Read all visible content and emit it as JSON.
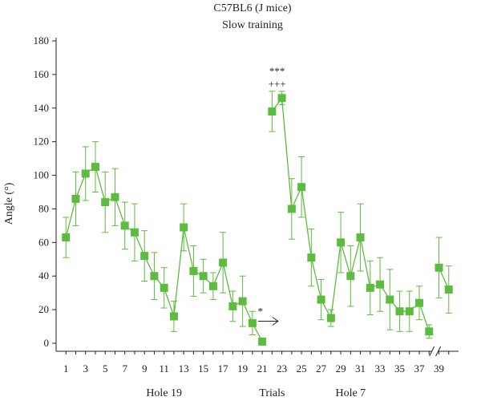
{
  "chart_data": {
    "type": "line",
    "title": "C57BL6 (J mice)",
    "subtitle": "Slow training",
    "xlabel": "Trials",
    "ylabel": "Angle (°)",
    "ylim": [
      0,
      180
    ],
    "yticks": [
      0,
      20,
      40,
      60,
      80,
      100,
      120,
      140,
      160,
      180
    ],
    "xticks": [
      1,
      3,
      5,
      7,
      9,
      11,
      13,
      15,
      17,
      19,
      21,
      23,
      25,
      27,
      29,
      31,
      33,
      35,
      37,
      39
    ],
    "xlim": [
      0,
      41
    ],
    "axis_break_after": 38,
    "group_labels": [
      {
        "text": "Hole 19",
        "trials": [
          1,
          21
        ]
      },
      {
        "text": "Trials",
        "trials": [
          22,
          22
        ]
      },
      {
        "text": "Hole 7",
        "trials": [
          22,
          38
        ]
      }
    ],
    "color": "#5dbb3f",
    "grid": false,
    "series": [
      {
        "segments": [
          {
            "x": [
              1,
              2,
              3,
              4,
              5,
              6,
              7,
              8,
              9,
              10,
              11,
              12,
              13,
              14,
              15,
              16,
              17,
              18,
              19,
              20,
              21
            ],
            "y": [
              63,
              86,
              101,
              105,
              84,
              87,
              70,
              66,
              52,
              40,
              33,
              16,
              69,
              43,
              40,
              34,
              48,
              22,
              25,
              12,
              1
            ],
            "err": [
              12,
              16,
              16,
              15,
              18,
              17,
              14,
              17,
              15,
              14,
              12,
              9,
              14,
              15,
              10,
              8,
              18,
              9,
              15,
              7,
              0
            ]
          },
          {
            "x": [
              22,
              23,
              24,
              25,
              26,
              27,
              28,
              29,
              30,
              31,
              32,
              33,
              34,
              35,
              36,
              37,
              38
            ],
            "y": [
              138,
              146,
              80,
              93,
              51,
              26,
              15,
              60,
              40,
              63,
              33,
              35,
              26,
              19,
              19,
              24,
              7
            ],
            "err": [
              12,
              4,
              18,
              18,
              17,
              12,
              5,
              18,
              18,
              20,
              16,
              16,
              18,
              12,
              12,
              10,
              4
            ]
          },
          {
            "x": [
              39,
              40
            ],
            "y": [
              45,
              32
            ],
            "err": [
              18,
              14
            ]
          }
        ]
      }
    ],
    "annotations": [
      {
        "text": "***",
        "x": 23,
        "level": "upper"
      },
      {
        "text": "+++",
        "x": 23,
        "level": "lower"
      },
      {
        "text": "*",
        "x": 20,
        "level": "arrow"
      }
    ]
  }
}
